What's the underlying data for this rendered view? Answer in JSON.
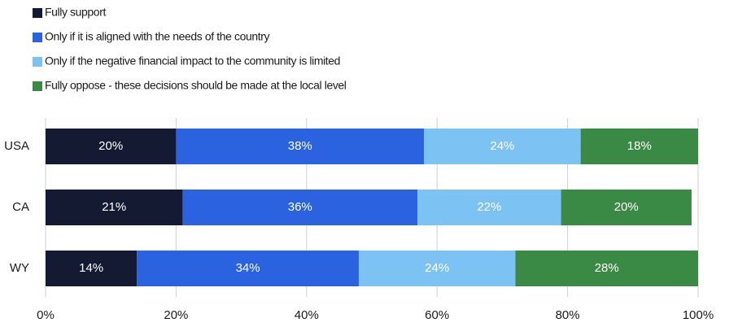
{
  "chart_data": {
    "type": "stacked-bar-horizontal",
    "categories": [
      "USA",
      "CA",
      "WY"
    ],
    "series": [
      {
        "name": "Fully support",
        "color": "#151a33",
        "values": [
          20,
          21,
          14
        ],
        "value_labels": [
          "20%",
          "21%",
          "14%"
        ]
      },
      {
        "name": "Only if it is aligned with the needs of the country",
        "color": "#2a62e0",
        "values": [
          38,
          36,
          34
        ],
        "value_labels": [
          "38%",
          "36%",
          "34%"
        ]
      },
      {
        "name": "Only if the negative financial impact to the community is limited",
        "color": "#7cc3f4",
        "values": [
          24,
          22,
          24
        ],
        "value_labels": [
          "24%",
          "22%",
          "24%"
        ]
      },
      {
        "name": "Fully oppose - these decisions should be made at the local level",
        "color": "#3a8a45",
        "values": [
          18,
          20,
          28
        ],
        "value_labels": [
          "18%",
          "20%",
          "28%"
        ]
      }
    ],
    "xlim": [
      0,
      100
    ],
    "xticks": [
      {
        "value": 0,
        "label": "0%"
      },
      {
        "value": 20,
        "label": "20%"
      },
      {
        "value": 40,
        "label": "40%"
      },
      {
        "value": 60,
        "label": "60%"
      },
      {
        "value": 80,
        "label": "80%"
      },
      {
        "value": 100,
        "label": "100%"
      }
    ],
    "grid": true,
    "legend": "top-left"
  }
}
